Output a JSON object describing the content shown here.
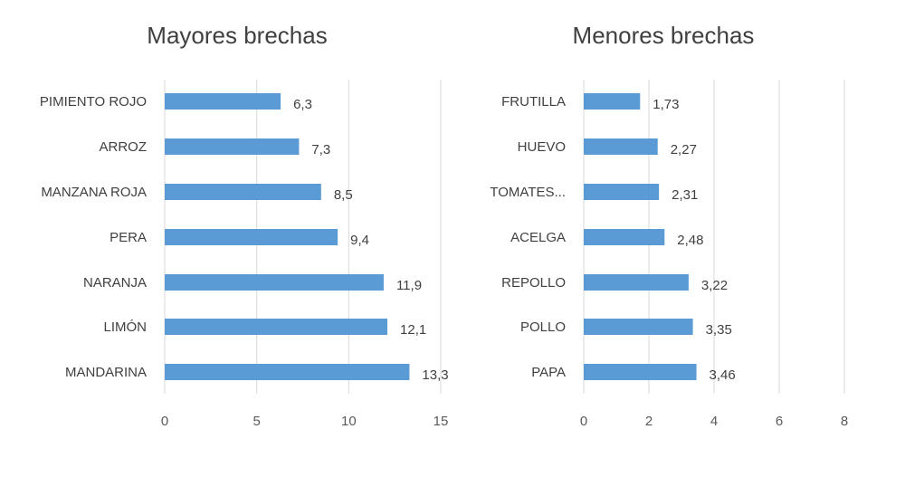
{
  "chart_data": [
    {
      "type": "bar",
      "orientation": "horizontal",
      "title": "Mayores brechas",
      "categories": [
        "PIMIENTO ROJO",
        "ARROZ",
        "MANZANA ROJA",
        "PERA",
        "NARANJA",
        "LIMÓN",
        "MANDARINA"
      ],
      "values": [
        6.3,
        7.3,
        8.5,
        9.4,
        11.9,
        12.1,
        13.3
      ],
      "value_labels": [
        "6,3",
        "7,3",
        "8,5",
        "9,4",
        "11,9",
        "12,1",
        "13,3"
      ],
      "xlim": [
        0,
        15
      ],
      "xticks": [
        0,
        5,
        10,
        15
      ],
      "grid": true,
      "color": "#5b9bd5"
    },
    {
      "type": "bar",
      "orientation": "horizontal",
      "title": "Menores brechas",
      "categories": [
        "FRUTILLA",
        "HUEVO",
        "TOMATES...",
        "ACELGA",
        "REPOLLO",
        "POLLO",
        "PAPA"
      ],
      "values": [
        1.73,
        2.27,
        2.31,
        2.48,
        3.22,
        3.35,
        3.46
      ],
      "value_labels": [
        "1,73",
        "2,27",
        "2,31",
        "2,48",
        "3,22",
        "3,35",
        "3,46"
      ],
      "xlim": [
        0,
        8
      ],
      "xticks": [
        0,
        2,
        4,
        6,
        8
      ],
      "grid": true,
      "color": "#5b9bd5"
    }
  ]
}
